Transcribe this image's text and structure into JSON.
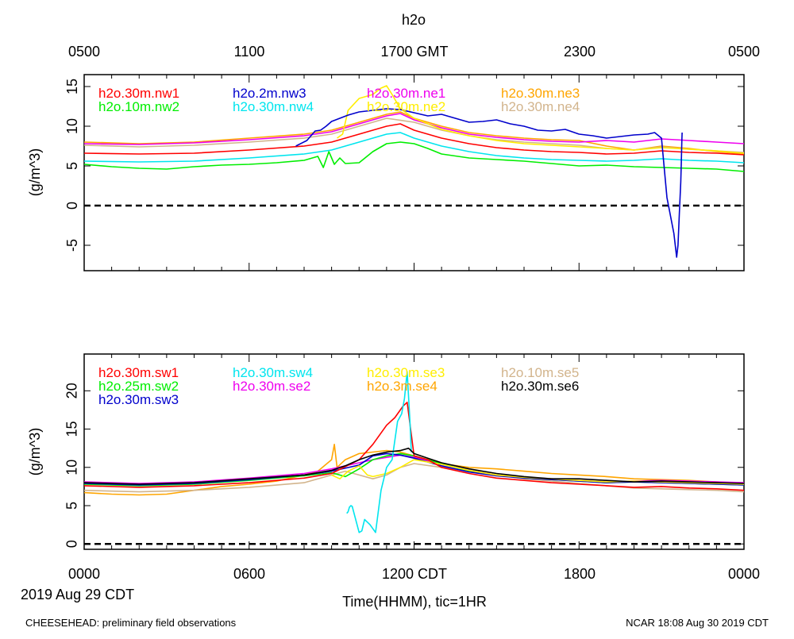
{
  "title": "h2o",
  "top_axis": {
    "ticks": [
      "0500",
      "1100",
      "1700 GMT",
      "2300",
      "0500"
    ]
  },
  "bottom_axis": {
    "ticks": [
      "0000",
      "0600",
      "1200 CDT",
      "1800",
      "0000"
    ],
    "label": "Time(HHMM), tic=1HR",
    "date_label": "2019 Aug 29 CDT"
  },
  "footer": {
    "left": "CHEESEHEAD: preliminary field observations",
    "right": "NCAR 18:08 Aug 30 2019 CDT"
  },
  "chart_data": [
    {
      "type": "line",
      "panel": "top",
      "ylabel": "(g/m^3)",
      "xlim": [
        0,
        24
      ],
      "ylim": [
        -8.2,
        16.5
      ],
      "yticks": [
        15,
        10,
        5,
        0,
        -5
      ],
      "ytick_labels": [
        "15",
        "10",
        "5",
        "0",
        "-5"
      ],
      "zero_line": true,
      "legend_columns": [
        [
          {
            "name": "h2o.30m.nw1",
            "color": "#ff0000"
          },
          {
            "name": "h2o.10m.nw2",
            "color": "#00ee00"
          }
        ],
        [
          {
            "name": "h2o.2m.nw3",
            "color": "#0000cc"
          },
          {
            "name": "h2o.30m.nw4",
            "color": "#00e5ee"
          }
        ],
        [
          {
            "name": "h2o.30m.ne1",
            "color": "#ee00ee"
          },
          {
            "name": "h2o.30m.ne2",
            "color": "#ffee00"
          }
        ],
        [
          {
            "name": "h2o.30m.ne3",
            "color": "#ffa500"
          },
          {
            "name": "h2o.30m.ne4",
            "color": "#d2b48c"
          }
        ]
      ],
      "series": [
        {
          "name": "h2o.30m.ne3",
          "color": "#ffa500",
          "x": [
            0,
            2,
            4,
            6,
            8,
            9,
            10,
            11,
            11.5,
            12,
            13,
            14,
            15,
            16,
            17,
            18,
            19,
            20,
            21,
            22,
            23,
            24
          ],
          "y": [
            8.0,
            7.8,
            8.0,
            8.5,
            9.0,
            9.5,
            10.5,
            11.5,
            11.8,
            11.0,
            10.0,
            9.2,
            8.8,
            8.5,
            8.3,
            8.2,
            7.5,
            7.0,
            7.5,
            7.2,
            6.8,
            6.5
          ]
        },
        {
          "name": "h2o.30m.ne4",
          "color": "#d2b48c",
          "x": [
            0,
            2,
            4,
            6,
            8,
            9,
            10,
            11,
            12,
            13,
            14,
            15,
            16,
            17,
            18,
            19,
            20,
            21,
            22,
            23,
            24
          ],
          "y": [
            7.6,
            7.4,
            7.6,
            8.0,
            8.5,
            9.0,
            10.0,
            11.0,
            10.5,
            9.5,
            8.8,
            8.3,
            8.0,
            7.8,
            7.6,
            7.2,
            7.0,
            7.4,
            7.1,
            6.9,
            6.7
          ]
        },
        {
          "name": "h2o.30m.ne1",
          "color": "#ee00ee",
          "x": [
            0,
            2,
            4,
            6,
            8,
            9,
            10,
            11,
            11.5,
            12,
            13,
            14,
            15,
            16,
            17,
            18,
            19,
            20,
            21,
            22,
            23,
            24
          ],
          "y": [
            7.8,
            7.7,
            7.9,
            8.3,
            8.8,
            9.3,
            10.3,
            11.3,
            11.6,
            10.8,
            9.8,
            9.0,
            8.6,
            8.3,
            8.1,
            8.0,
            8.2,
            8.0,
            8.4,
            8.2,
            8.0,
            7.8
          ]
        },
        {
          "name": "h2o.30m.nw1",
          "color": "#ff0000",
          "x": [
            0,
            2,
            4,
            6,
            8,
            9,
            10,
            11,
            11.5,
            12,
            13,
            14,
            15,
            16,
            17,
            18,
            19,
            20,
            21,
            22,
            23,
            24
          ],
          "y": [
            6.6,
            6.5,
            6.6,
            7.0,
            7.5,
            8.0,
            9.0,
            10.0,
            10.3,
            9.5,
            8.5,
            7.8,
            7.3,
            7.0,
            6.8,
            6.7,
            6.5,
            6.6,
            6.9,
            6.7,
            6.6,
            6.4
          ]
        },
        {
          "name": "h2o.30m.nw4",
          "color": "#00e5ee",
          "x": [
            0,
            2,
            4,
            6,
            8,
            9,
            10,
            11,
            11.5,
            12,
            13,
            14,
            15,
            16,
            17,
            18,
            19,
            20,
            21,
            22,
            23,
            24
          ],
          "y": [
            5.6,
            5.5,
            5.6,
            6.0,
            6.5,
            7.0,
            8.0,
            9.0,
            9.2,
            8.5,
            7.5,
            6.8,
            6.3,
            6.0,
            5.8,
            5.7,
            5.6,
            5.7,
            5.9,
            5.7,
            5.6,
            5.4
          ]
        },
        {
          "name": "h2o.10m.nw2",
          "color": "#00ee00",
          "x": [
            0,
            1,
            2,
            3,
            4,
            5,
            6,
            7,
            8,
            8.5,
            8.7,
            8.9,
            9.1,
            9.3,
            9.5,
            10,
            10.5,
            11,
            11.5,
            12,
            12.5,
            13,
            14,
            15,
            16,
            17,
            18,
            19,
            20,
            21,
            22,
            23,
            24
          ],
          "y": [
            5.2,
            4.9,
            4.7,
            4.6,
            4.9,
            5.1,
            5.2,
            5.4,
            5.7,
            6.2,
            4.8,
            6.8,
            5.2,
            6.0,
            5.3,
            5.4,
            6.8,
            7.8,
            8.0,
            7.8,
            7.2,
            6.5,
            6.0,
            5.8,
            5.6,
            5.3,
            5.0,
            5.1,
            4.9,
            4.8,
            4.7,
            4.6,
            4.3
          ]
        },
        {
          "name": "h2o.30m.ne2",
          "color": "#ffee00",
          "x": [
            9.2,
            9.4,
            9.6,
            10,
            10.5,
            10.8,
            11.0,
            11.2,
            11.5,
            12,
            13,
            14,
            15,
            16,
            17,
            18,
            19,
            20,
            21,
            22,
            23,
            24
          ],
          "y": [
            8.5,
            9.0,
            12.0,
            13.5,
            14.0,
            14.8,
            15.1,
            14.0,
            12.2,
            11.0,
            9.6,
            8.8,
            8.2,
            7.8,
            7.6,
            7.4,
            7.2,
            7.0,
            7.3,
            7.1,
            6.9,
            6.6
          ]
        },
        {
          "name": "h2o.2m.nw3",
          "color": "#0000cc",
          "x": [
            7.7,
            8.1,
            8.4,
            8.6,
            8.8,
            9.0,
            9.3,
            9.6,
            10,
            10.5,
            11,
            11.5,
            12,
            12.5,
            13,
            13.5,
            14,
            14.5,
            15,
            15.5,
            16,
            16.5,
            17,
            17.5,
            18,
            18.5,
            19,
            19.5,
            20,
            20.5,
            20.75,
            21.0,
            21.2,
            21.45,
            21.55,
            21.6,
            21.65,
            21.7,
            21.72,
            21.74,
            21.75
          ],
          "y": [
            7.5,
            8.2,
            9.4,
            9.5,
            10.0,
            10.6,
            11.0,
            11.4,
            11.8,
            12.0,
            12.2,
            12.1,
            11.7,
            11.3,
            11.5,
            11.0,
            10.5,
            10.6,
            10.8,
            10.3,
            10.0,
            9.5,
            9.4,
            9.6,
            9.0,
            8.8,
            8.5,
            8.7,
            8.9,
            9.0,
            9.2,
            8.5,
            1.0,
            -3.5,
            -6.5,
            -5.0,
            -1.0,
            3.0,
            5.5,
            8.0,
            9.2
          ]
        }
      ]
    },
    {
      "type": "line",
      "panel": "bottom",
      "ylabel": "(g/m^3)",
      "xlim": [
        0,
        24
      ],
      "ylim": [
        -0.7,
        24.8
      ],
      "yticks": [
        20,
        15,
        10,
        5,
        0
      ],
      "ytick_labels": [
        "20",
        "15",
        "10",
        "5",
        "0"
      ],
      "zero_line": true,
      "legend_columns": [
        [
          {
            "name": "h2o.30m.sw1",
            "color": "#ff0000"
          },
          {
            "name": "h2o.25m.sw2",
            "color": "#00ee00"
          },
          {
            "name": "h2o.30m.sw3",
            "color": "#0000cc"
          }
        ],
        [
          {
            "name": "h2o.30m.sw4",
            "color": "#00e5ee"
          },
          {
            "name": "h2o.30m.se2",
            "color": "#ee00ee"
          }
        ],
        [
          {
            "name": "h2o.30m.se3",
            "color": "#ffee00"
          },
          {
            "name": "h2o.3m.se4",
            "color": "#ffa500"
          }
        ],
        [
          {
            "name": "h2o.10m.se5",
            "color": "#d2b48c"
          },
          {
            "name": "h2o.30m.se6",
            "color": "#000000"
          }
        ]
      ],
      "series": [
        {
          "name": "h2o.3m.se4",
          "color": "#ffa500",
          "x": [
            0,
            1,
            2,
            3,
            4,
            5,
            6,
            7,
            8,
            8.5,
            9,
            9.1,
            9.2,
            9.5,
            10,
            10.5,
            11,
            11.5,
            12,
            13,
            14,
            15,
            16,
            17,
            18,
            19,
            20,
            21,
            22,
            23,
            24
          ],
          "y": [
            6.7,
            6.5,
            6.4,
            6.5,
            7.0,
            7.5,
            7.8,
            8.2,
            9.0,
            9.5,
            11.0,
            13.0,
            10.0,
            11.0,
            11.8,
            12.0,
            12.2,
            12.0,
            11.5,
            10.5,
            10.0,
            9.8,
            9.5,
            9.2,
            9.0,
            8.8,
            8.5,
            8.4,
            8.3,
            8.1,
            7.9
          ]
        },
        {
          "name": "h2o.10m.se5",
          "color": "#d2b48c",
          "x": [
            0,
            2,
            4,
            6,
            8,
            9,
            9.5,
            10,
            10.5,
            11,
            11.5,
            12,
            13,
            14,
            15,
            16,
            17,
            18,
            19,
            20,
            21,
            22,
            23,
            24
          ],
          "y": [
            7.0,
            6.8,
            7.0,
            7.4,
            8.0,
            9.0,
            9.5,
            9.0,
            8.5,
            9.0,
            10.0,
            10.5,
            10.0,
            9.5,
            9.0,
            8.5,
            8.2,
            7.9,
            7.6,
            7.3,
            7.2,
            7.1,
            7.0,
            6.8
          ]
        },
        {
          "name": "h2o.30m.se2",
          "color": "#ee00ee",
          "x": [
            0,
            2,
            4,
            6,
            8,
            9,
            10,
            10.5,
            11,
            11.5,
            12,
            13,
            14,
            15,
            16,
            17,
            18,
            19,
            20,
            21,
            22,
            23,
            24
          ],
          "y": [
            8.1,
            7.9,
            8.1,
            8.6,
            9.2,
            9.8,
            10.6,
            11.0,
            11.3,
            11.6,
            11.3,
            10.4,
            9.6,
            9.0,
            8.7,
            8.5,
            8.3,
            8.1,
            8.2,
            8.3,
            8.2,
            8.1,
            8.0
          ]
        },
        {
          "name": "h2o.25m.sw2",
          "color": "#00ee00",
          "x": [
            0,
            2,
            4,
            6,
            8,
            9,
            9.5,
            10,
            10.5,
            11,
            11.5,
            12,
            13,
            14,
            15,
            16,
            17,
            18,
            19,
            20,
            21,
            22,
            23,
            24
          ],
          "y": [
            7.8,
            7.6,
            7.8,
            8.3,
            8.9,
            9.3,
            8.8,
            9.8,
            11.0,
            11.5,
            11.8,
            11.5,
            10.5,
            9.5,
            9.0,
            8.6,
            8.4,
            8.2,
            8.0,
            8.1,
            8.0,
            7.9,
            7.8,
            7.7
          ]
        },
        {
          "name": "h2o.30m.sw3",
          "color": "#0000cc",
          "x": [
            0,
            2,
            4,
            6,
            8,
            9,
            10,
            10.5,
            11,
            11.5,
            12,
            13,
            14,
            15,
            16,
            17,
            18,
            19,
            20,
            21,
            22,
            23,
            24
          ],
          "y": [
            7.9,
            7.7,
            7.9,
            8.4,
            9.0,
            9.5,
            10.3,
            11.5,
            11.8,
            11.6,
            11.2,
            10.2,
            9.4,
            8.9,
            8.6,
            8.4,
            8.2,
            8.0,
            8.1,
            8.0,
            7.9,
            7.8,
            7.7
          ]
        },
        {
          "name": "h2o.30m.se3",
          "color": "#ffee00",
          "x": [
            9,
            9.3,
            9.6,
            10,
            10.3,
            10.5,
            11,
            11.5,
            12,
            13,
            14,
            15,
            16,
            17,
            18,
            19,
            20,
            21,
            22,
            23,
            24
          ],
          "y": [
            9.0,
            8.5,
            9.5,
            10.2,
            9.0,
            8.8,
            9.2,
            10.0,
            11.0,
            10.4,
            9.6,
            9.0,
            8.7,
            8.5,
            8.3,
            8.1,
            8.2,
            8.1,
            8.0,
            7.9,
            7.8
          ]
        },
        {
          "name": "h2o.30m.sw1",
          "color": "#ff0000",
          "x": [
            0,
            2,
            4,
            6,
            8,
            9,
            10,
            10.5,
            11,
            11.3,
            11.6,
            11.75,
            12,
            12.5,
            13,
            14,
            15,
            16,
            17,
            18,
            19,
            20,
            21,
            22,
            23,
            24
          ],
          "y": [
            7.6,
            7.4,
            7.6,
            8.0,
            8.6,
            9.2,
            11.0,
            13.0,
            15.5,
            16.5,
            18.0,
            18.5,
            11.5,
            11.0,
            10.0,
            9.2,
            8.6,
            8.3,
            8.0,
            7.8,
            7.6,
            7.4,
            7.5,
            7.3,
            7.2,
            7.0
          ]
        },
        {
          "name": "h2o.30m.sw4",
          "color": "#00e5ee",
          "x": [
            9.55,
            9.6,
            9.65,
            9.7,
            9.75,
            10.0,
            10.1,
            10.2,
            10.4,
            10.6,
            10.8,
            11.0,
            11.2,
            11.4,
            11.55,
            11.65,
            11.75,
            11.85,
            11.9
          ],
          "y": [
            4.0,
            4.2,
            4.8,
            5.0,
            4.9,
            1.5,
            1.7,
            3.2,
            2.5,
            1.5,
            7.0,
            10.0,
            11.0,
            16.0,
            17.0,
            19.0,
            22.5,
            16.0,
            12.0
          ]
        },
        {
          "name": "h2o.30m.se6",
          "color": "#000000",
          "x": [
            0,
            2,
            4,
            6,
            8,
            9,
            9.5,
            10,
            10.5,
            11,
            11.5,
            11.8,
            12,
            12.5,
            13,
            14,
            15,
            16,
            17,
            18,
            19,
            20,
            21,
            22,
            23,
            24
          ],
          "y": [
            8.0,
            7.8,
            8.0,
            8.5,
            9.0,
            9.6,
            10.2,
            11.0,
            11.6,
            12.0,
            12.2,
            12.5,
            11.8,
            11.2,
            10.6,
            9.8,
            9.2,
            8.8,
            8.5,
            8.5,
            8.3,
            8.1,
            8.2,
            8.1,
            8.0,
            7.9
          ]
        }
      ]
    }
  ]
}
